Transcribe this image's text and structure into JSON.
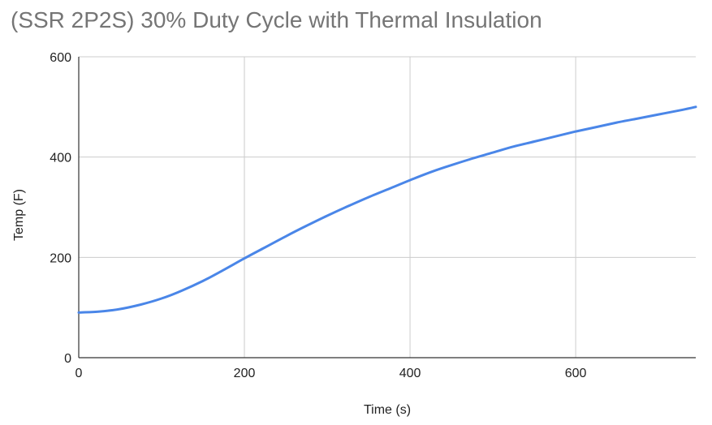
{
  "chart_data": {
    "type": "line",
    "title": "(SSR 2P2S) 30% Duty Cycle with Thermal Insulation",
    "xlabel": "Time (s)",
    "ylabel": "Temp (F)",
    "xlim": [
      0,
      745
    ],
    "ylim": [
      0,
      600
    ],
    "x_ticks": [
      "0",
      "200",
      "400",
      "600"
    ],
    "y_ticks": [
      "0",
      "200",
      "400",
      "600"
    ],
    "grid": true,
    "legend": "none",
    "series": [
      {
        "color": "#4a86e8",
        "x": [
          0,
          25,
          50,
          75,
          100,
          125,
          150,
          175,
          200,
          225,
          250,
          275,
          300,
          325,
          350,
          375,
          400,
          425,
          450,
          475,
          500,
          525,
          550,
          575,
          600,
          625,
          650,
          675,
          700,
          725,
          745
        ],
        "y": [
          90,
          92,
          97,
          106,
          118,
          134,
          153,
          175,
          198,
          220,
          242,
          263,
          283,
          302,
          320,
          337,
          354,
          370,
          384,
          397,
          409,
          421,
          431,
          441,
          451,
          460,
          469,
          477,
          485,
          493,
          500
        ]
      }
    ]
  }
}
